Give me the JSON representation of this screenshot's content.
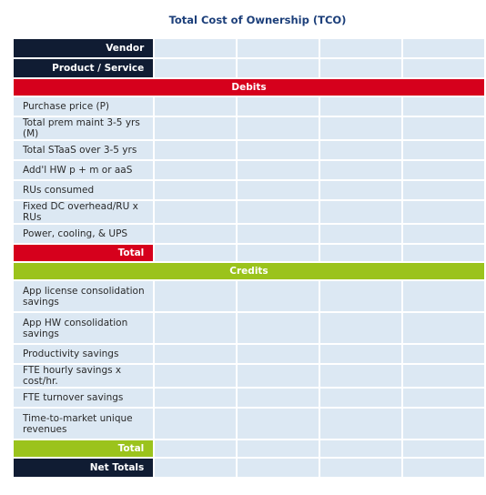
{
  "title": "Total Cost of Ownership (TCO)",
  "header_rows": {
    "vendor": "Vendor",
    "product": "Product / Service"
  },
  "debits": {
    "band_label": "Debits",
    "rows": [
      "Purchase price (P)",
      "Total prem maint 3-5 yrs (M)",
      "Total STaaS over 3-5 yrs",
      "Add'l HW p + m or aaS",
      "RUs consumed",
      "Fixed DC overhead/RU x RUs",
      "Power, cooling, & UPS"
    ],
    "total_label": "Total"
  },
  "credits": {
    "band_label": "Credits",
    "rows": [
      "App license consolidation savings",
      "App HW consolidation savings",
      "Productivity savings",
      "FTE hourly savings x cost/hr.",
      "FTE turnover savings",
      "Time-to-market unique revenues"
    ],
    "total_label": "Total"
  },
  "net_totals_label": "Net Totals",
  "colors": {
    "title": "#1c3f7a",
    "dark_header": "#101c33",
    "debits_band": "#d6001c",
    "credits_band": "#9bc31c",
    "cell": "#dce8f3"
  }
}
